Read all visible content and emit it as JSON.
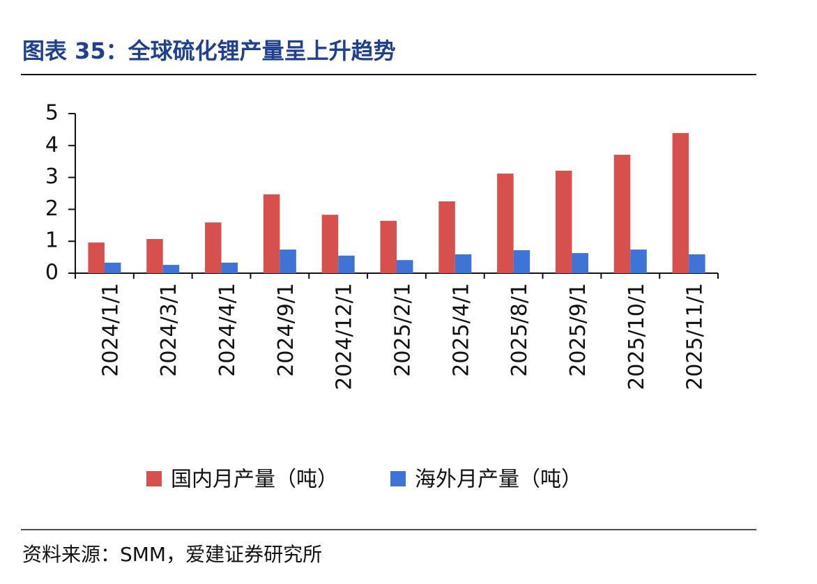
{
  "chart_data": {
    "type": "bar",
    "title": "图表 35：全球硫化锂产量呈上升趋势",
    "source": "资料来源：SMM，爱建证券研究所",
    "categories": [
      "2024/1/1",
      "2024/3/1",
      "2024/4/1",
      "2024/9/1",
      "2024/12/1",
      "2025/2/1",
      "2025/4/1",
      "2025/8/1",
      "2025/9/1",
      "2025/10/1",
      "2025/11/1"
    ],
    "series": [
      {
        "name": "国内月产量（吨）",
        "color": "#d6504e",
        "values": [
          0.96,
          1.07,
          1.59,
          2.47,
          1.83,
          1.64,
          2.25,
          3.12,
          3.21,
          3.71,
          4.39
        ]
      },
      {
        "name": "海外月产量（吨）",
        "color": "#3f73d6",
        "values": [
          0.33,
          0.26,
          0.33,
          0.74,
          0.55,
          0.41,
          0.59,
          0.72,
          0.63,
          0.74,
          0.59
        ]
      }
    ],
    "ylim": [
      0,
      5
    ],
    "yticks": [
      0,
      1,
      2,
      3,
      4,
      5
    ],
    "grid": false
  }
}
